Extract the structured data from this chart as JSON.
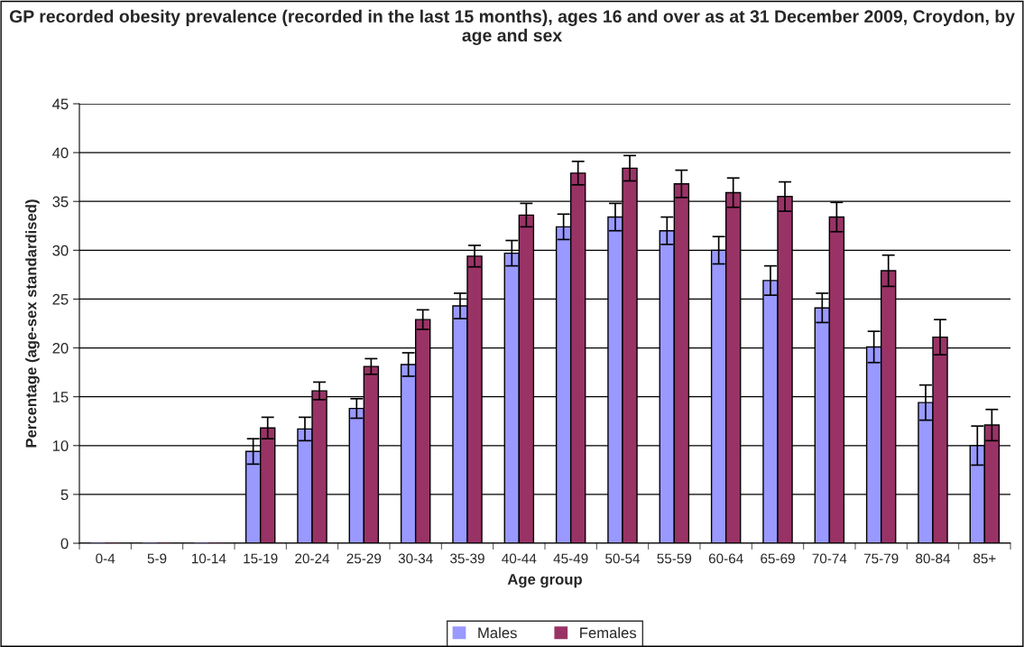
{
  "chart_data": {
    "type": "bar",
    "title": "GP recorded obesity prevalence (recorded in the last 15 months), ages 16 and over as at 31 December 2009, Croydon, by age and sex",
    "xlabel": "Age group",
    "ylabel": "Percentage (age-sex standardised)",
    "categories": [
      "0-4",
      "5-9",
      "10-14",
      "15-19",
      "20-24",
      "25-29",
      "30-34",
      "35-39",
      "40-44",
      "45-49",
      "50-54",
      "55-59",
      "60-64",
      "65-69",
      "70-74",
      "75-79",
      "80-84",
      "85+"
    ],
    "series": [
      {
        "name": "Males",
        "color": "#9999ff",
        "values": [
          0,
          0,
          0,
          9.4,
          11.7,
          13.8,
          18.3,
          24.3,
          29.7,
          32.4,
          33.4,
          32.0,
          30.0,
          26.9,
          24.1,
          20.1,
          14.4,
          10.0
        ],
        "errors": [
          null,
          null,
          null,
          1.3,
          1.2,
          1.0,
          1.2,
          1.3,
          1.3,
          1.3,
          1.4,
          1.4,
          1.4,
          1.5,
          1.5,
          1.6,
          1.8,
          2.0
        ]
      },
      {
        "name": "Females",
        "color": "#993366",
        "values": [
          0,
          0,
          0,
          11.8,
          15.6,
          18.1,
          22.9,
          29.4,
          33.6,
          37.9,
          38.4,
          36.8,
          35.9,
          35.5,
          33.4,
          27.9,
          21.1,
          12.1
        ],
        "errors": [
          null,
          null,
          null,
          1.1,
          0.9,
          0.8,
          1.0,
          1.1,
          1.2,
          1.2,
          1.3,
          1.4,
          1.5,
          1.5,
          1.5,
          1.6,
          1.8,
          1.6
        ]
      }
    ],
    "ylim": [
      0,
      45
    ],
    "yticks": [
      0,
      5,
      10,
      15,
      20,
      25,
      30,
      35,
      40,
      45
    ],
    "grid": "y",
    "legend": "bottom"
  }
}
